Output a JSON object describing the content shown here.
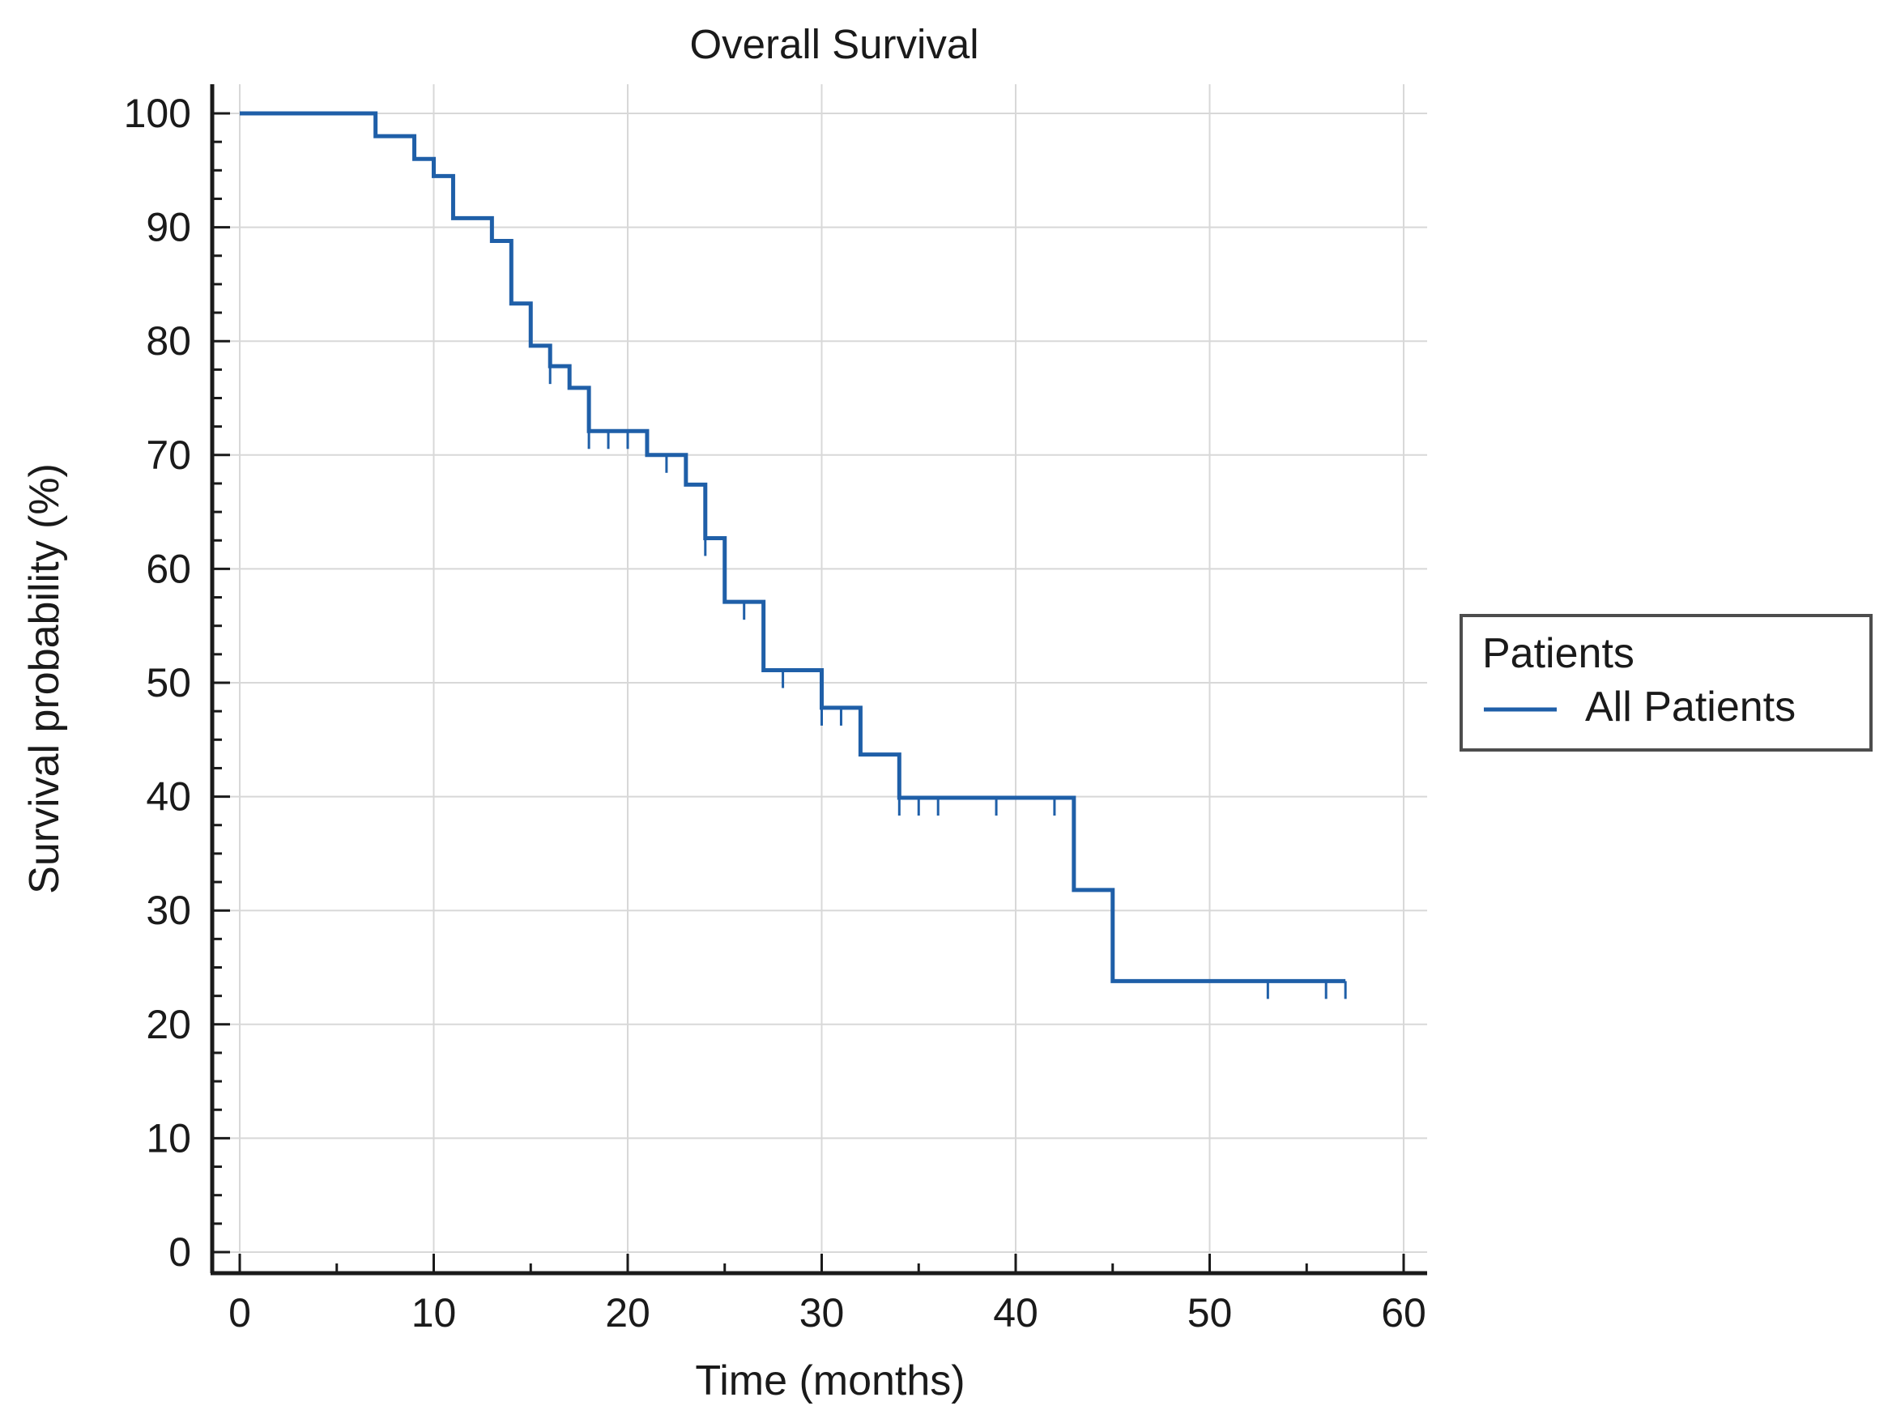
{
  "chart_data": {
    "type": "line",
    "subtype": "kaplan-meier",
    "title": "Overall Survival",
    "xlabel": "Time (months)",
    "ylabel": "Survival probability (%)",
    "xlim": [
      0,
      60
    ],
    "ylim": [
      0,
      100
    ],
    "x_ticks": [
      0,
      10,
      20,
      30,
      40,
      50,
      60
    ],
    "y_ticks": [
      0,
      10,
      20,
      30,
      40,
      50,
      60,
      70,
      80,
      90,
      100
    ],
    "x_tick_labels": [
      "0",
      "10",
      "20",
      "30",
      "40",
      "50",
      "60"
    ],
    "y_tick_labels": [
      "0",
      "10",
      "20",
      "30",
      "40",
      "50",
      "60",
      "70",
      "80",
      "90",
      "100"
    ],
    "grid": true,
    "legend": {
      "title": "Patients",
      "placement": "right",
      "entries": [
        {
          "label": "All Patients",
          "color": "#1f5fa8"
        }
      ]
    },
    "series": [
      {
        "name": "All Patients",
        "color": "#1f5fa8",
        "steps": [
          [
            0,
            100
          ],
          [
            7,
            98
          ],
          [
            9,
            96
          ],
          [
            10,
            94.5
          ],
          [
            11,
            90.8
          ],
          [
            13,
            88.8
          ],
          [
            14,
            83.3
          ],
          [
            15,
            79.6
          ],
          [
            16,
            77.8
          ],
          [
            17,
            75.9
          ],
          [
            18,
            72.1
          ],
          [
            21,
            70
          ],
          [
            23,
            67.4
          ],
          [
            24,
            62.7
          ],
          [
            25,
            57.1
          ],
          [
            27,
            51.1
          ],
          [
            30,
            47.8
          ],
          [
            32,
            43.7
          ],
          [
            34,
            39.9
          ],
          [
            43,
            31.8
          ],
          [
            45,
            23.8
          ]
        ],
        "end_time": 57,
        "censored": [
          [
            16,
            77.8
          ],
          [
            18,
            72.1
          ],
          [
            19,
            72.1
          ],
          [
            20,
            72.1
          ],
          [
            22,
            70
          ],
          [
            24,
            62.7
          ],
          [
            26,
            57.1
          ],
          [
            28,
            51.1
          ],
          [
            30,
            47.8
          ],
          [
            31,
            47.8
          ],
          [
            34,
            39.9
          ],
          [
            35,
            39.9
          ],
          [
            36,
            39.9
          ],
          [
            39,
            39.9
          ],
          [
            42,
            39.9
          ],
          [
            53,
            23.8
          ],
          [
            56,
            23.8
          ],
          [
            57,
            23.8
          ]
        ]
      }
    ]
  },
  "colors": {
    "series": "#1f5fa8",
    "axis": "#1a1a1a",
    "grid": "#d8d8d8"
  }
}
